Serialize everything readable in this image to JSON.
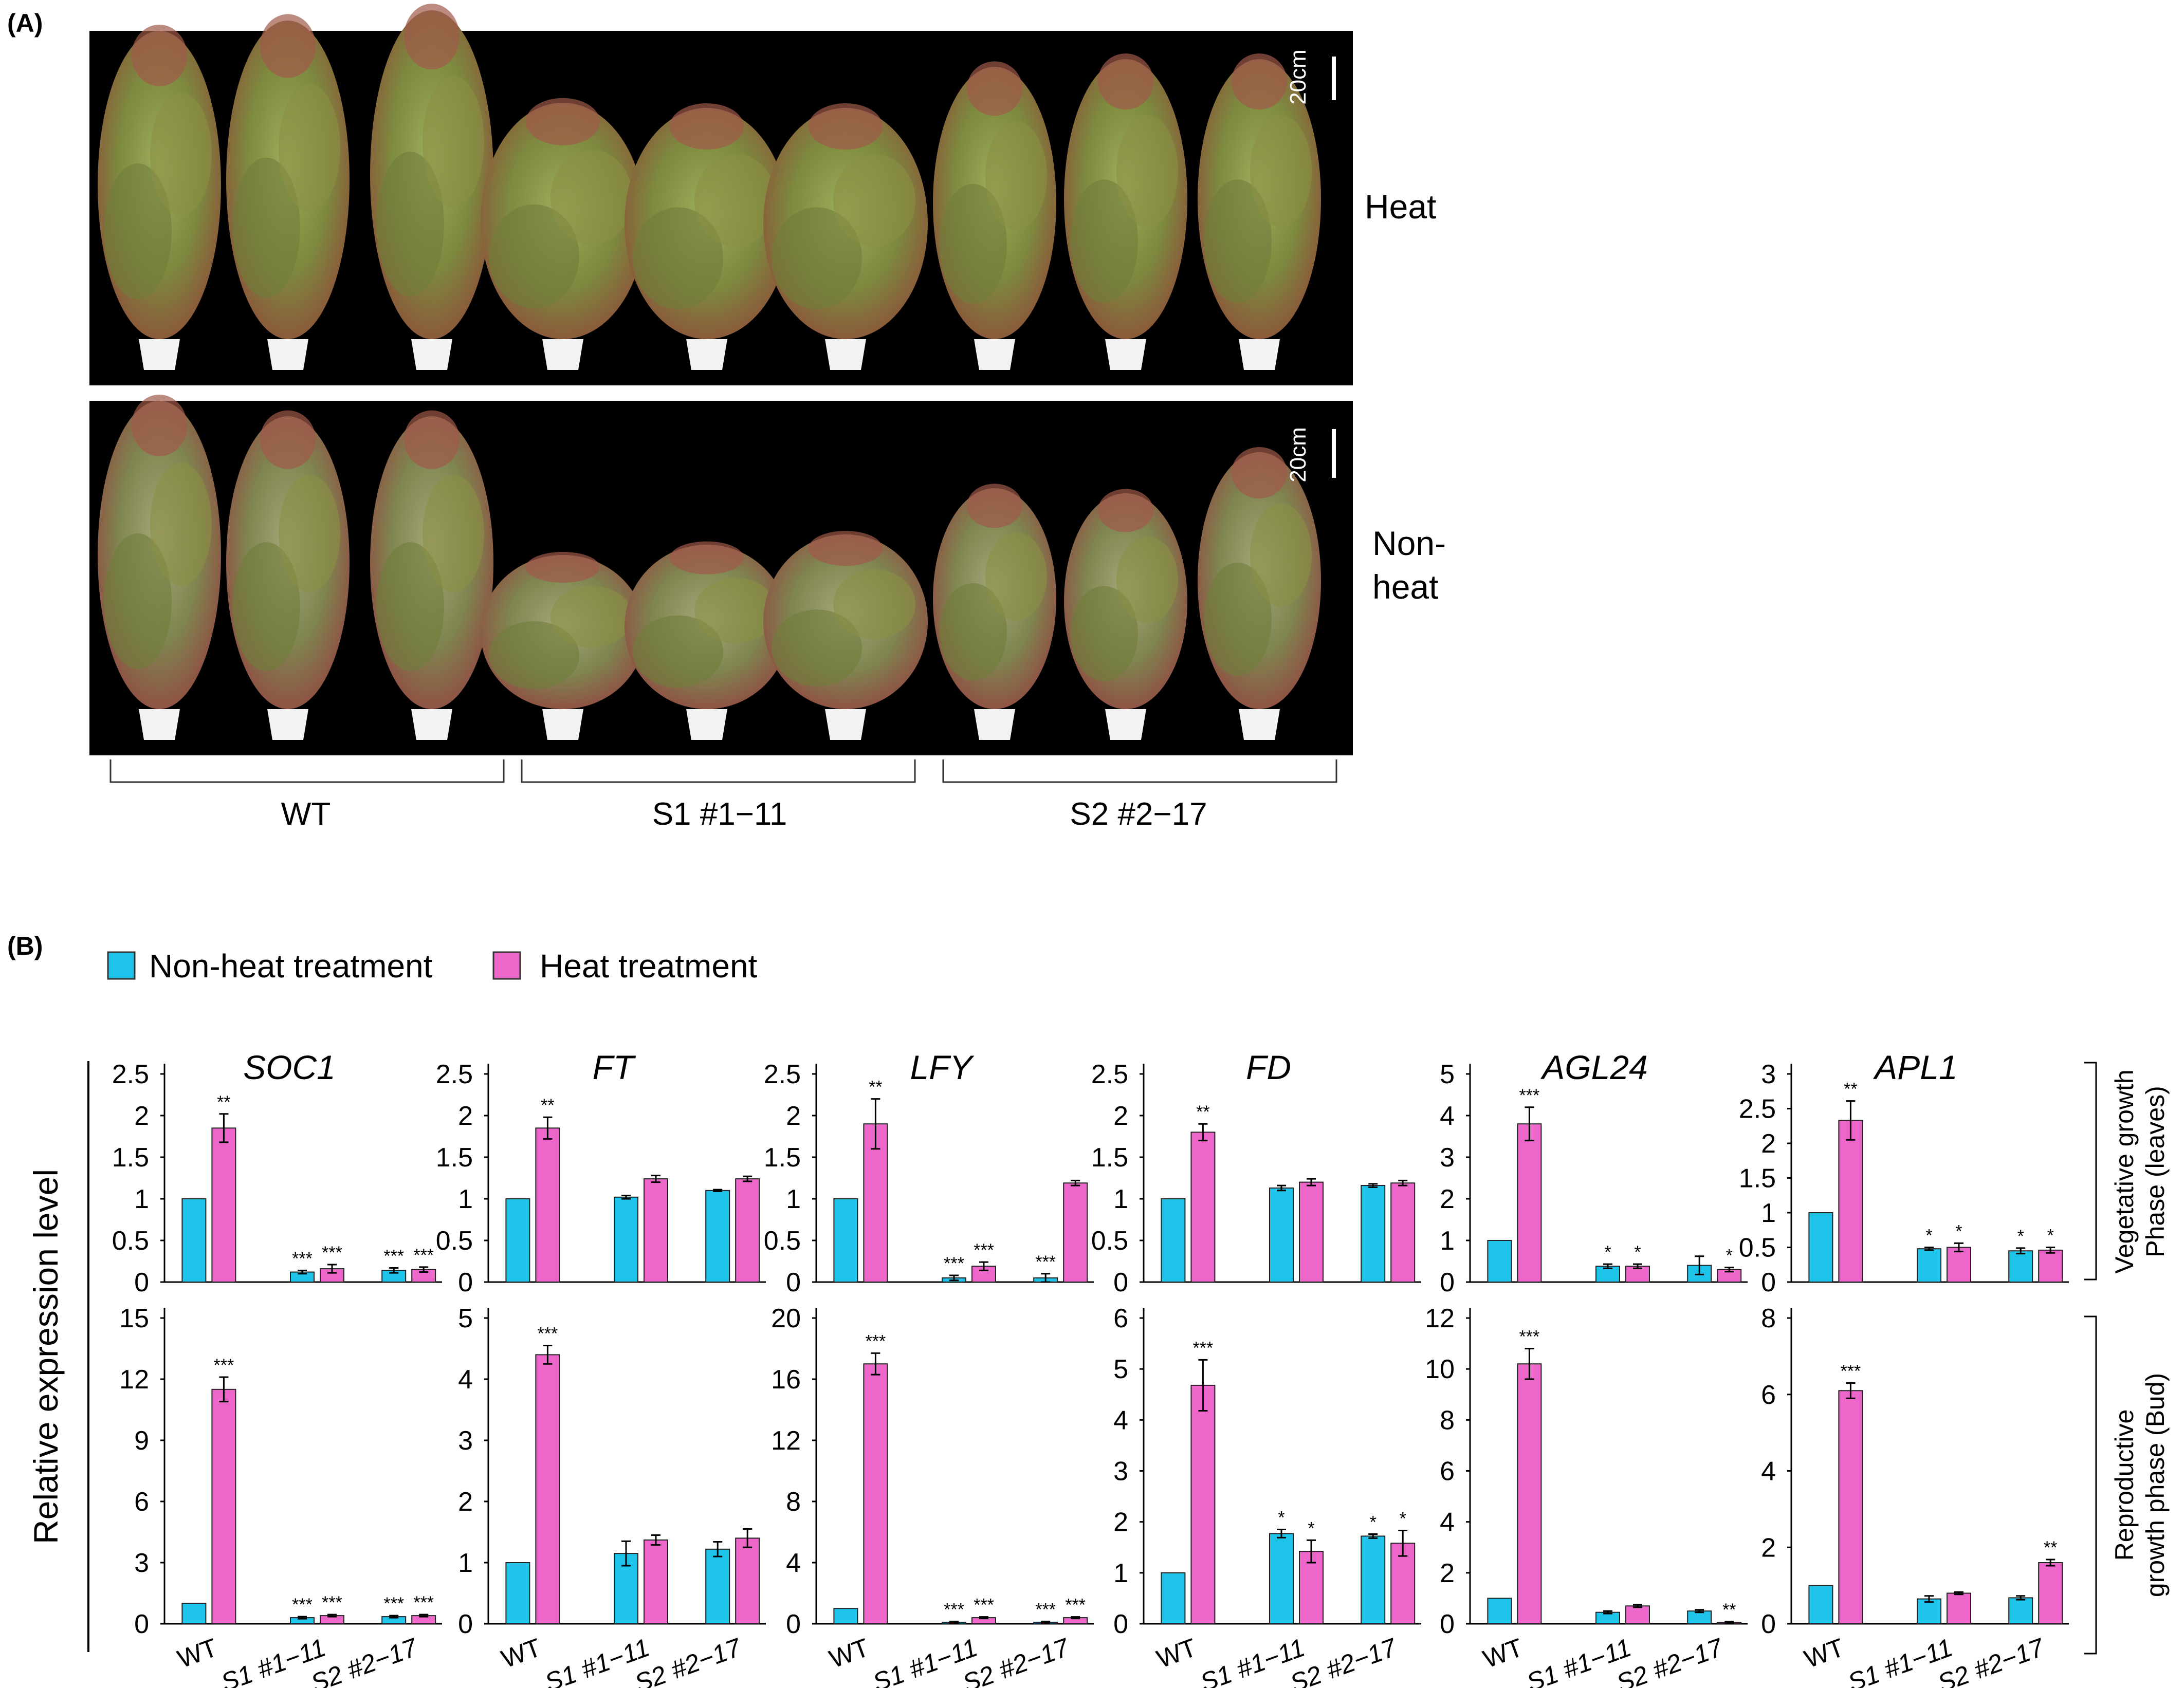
{
  "panel_a": {
    "label": "(A)",
    "scale_bar": "20cm",
    "condition_heat": "Heat",
    "condition_nonheat_line1": "Non-",
    "condition_nonheat_line2": "heat",
    "groups": [
      "WT",
      "S1 #1−11",
      "S2 #2−17"
    ]
  },
  "panel_b": {
    "label": "(B)",
    "legend": [
      {
        "name": "Non-heat treatment",
        "color": "#1ec4ea"
      },
      {
        "name": "Heat treatment",
        "color": "#ec67c9"
      }
    ],
    "y_axis_label": "Relative expression level",
    "row_labels": [
      {
        "line1": "Vegetative growth",
        "line2": "Phase (leaves)"
      },
      {
        "line1": "Reproductive",
        "line2": "growth phase  (Bud)"
      }
    ],
    "x_categories": [
      "WT",
      "S1 #1−11",
      "S2 #2−17"
    ]
  },
  "chart_data": [
    {
      "type": "bar",
      "row": "Vegetative",
      "title": "SOC1",
      "categories": [
        "WT",
        "S1 #1−11",
        "S2 #2−17"
      ],
      "ylim": [
        0,
        2.5
      ],
      "ticks": [
        "0",
        "0.5",
        "1",
        "1.5",
        "2",
        "2.5"
      ],
      "series": [
        {
          "name": "Non-heat treatment",
          "values": [
            1.0,
            0.12,
            0.14
          ],
          "errors": [
            0,
            0.02,
            0.03
          ],
          "sig": [
            "",
            "***",
            "***"
          ]
        },
        {
          "name": "Heat treatment",
          "values": [
            1.85,
            0.16,
            0.15
          ],
          "errors": [
            0.17,
            0.05,
            0.03
          ],
          "sig": [
            "**",
            "***",
            "***"
          ]
        }
      ]
    },
    {
      "type": "bar",
      "row": "Vegetative",
      "title": "FT",
      "categories": [
        "WT",
        "S1 #1−11",
        "S2 #2−17"
      ],
      "ylim": [
        0,
        2.5
      ],
      "ticks": [
        "0",
        "0.5",
        "1",
        "1.5",
        "2",
        "2.5"
      ],
      "series": [
        {
          "name": "Non-heat treatment",
          "values": [
            1.0,
            1.02,
            1.1
          ],
          "errors": [
            0,
            0.02,
            0.01
          ],
          "sig": [
            "",
            "",
            ""
          ]
        },
        {
          "name": "Heat treatment",
          "values": [
            1.85,
            1.24,
            1.24
          ],
          "errors": [
            0.13,
            0.04,
            0.03
          ],
          "sig": [
            "**",
            "",
            ""
          ]
        }
      ]
    },
    {
      "type": "bar",
      "row": "Vegetative",
      "title": "LFY",
      "categories": [
        "WT",
        "S1 #1−11",
        "S2 #2−17"
      ],
      "ylim": [
        0,
        2.5
      ],
      "ticks": [
        "0",
        "0.5",
        "1",
        "1.5",
        "2",
        "2.5"
      ],
      "series": [
        {
          "name": "Non-heat treatment",
          "values": [
            1.0,
            0.05,
            0.05
          ],
          "errors": [
            0,
            0.03,
            0.05
          ],
          "sig": [
            "",
            "***",
            "***"
          ]
        },
        {
          "name": "Heat treatment",
          "values": [
            1.9,
            0.19,
            1.19
          ],
          "errors": [
            0.3,
            0.05,
            0.03
          ],
          "sig": [
            "**",
            "***",
            ""
          ]
        }
      ]
    },
    {
      "type": "bar",
      "row": "Vegetative",
      "title": "FD",
      "categories": [
        "WT",
        "S1 #1−11",
        "S2 #2−17"
      ],
      "ylim": [
        0,
        2.5
      ],
      "ticks": [
        "0",
        "0.5",
        "1",
        "1.5",
        "2",
        "2.5"
      ],
      "series": [
        {
          "name": "Non-heat treatment",
          "values": [
            1.0,
            1.13,
            1.16
          ],
          "errors": [
            0,
            0.03,
            0.02
          ],
          "sig": [
            "",
            "",
            ""
          ]
        },
        {
          "name": "Heat treatment",
          "values": [
            1.8,
            1.2,
            1.19
          ],
          "errors": [
            0.1,
            0.04,
            0.03
          ],
          "sig": [
            "**",
            "",
            ""
          ]
        }
      ]
    },
    {
      "type": "bar",
      "row": "Vegetative",
      "title": "AGL24",
      "categories": [
        "WT",
        "S1 #1−11",
        "S2 #2−17"
      ],
      "ylim": [
        0,
        5
      ],
      "ticks": [
        "0",
        "1",
        "2",
        "3",
        "4",
        "5"
      ],
      "series": [
        {
          "name": "Non-heat treatment",
          "values": [
            1.0,
            0.38,
            0.4
          ],
          "errors": [
            0,
            0.05,
            0.22
          ],
          "sig": [
            "",
            "*",
            ""
          ]
        },
        {
          "name": "Heat treatment",
          "values": [
            3.8,
            0.38,
            0.3
          ],
          "errors": [
            0.4,
            0.05,
            0.05
          ],
          "sig": [
            "***",
            "*",
            "*"
          ]
        }
      ]
    },
    {
      "type": "bar",
      "row": "Vegetative",
      "title": "APL1",
      "categories": [
        "WT",
        "S1 #1−11",
        "S2 #2−17"
      ],
      "ylim": [
        0,
        3
      ],
      "ticks": [
        "0",
        "0.5",
        "1",
        "1.5",
        "2",
        "2.5",
        "3"
      ],
      "series": [
        {
          "name": "Non-heat treatment",
          "values": [
            1.0,
            0.48,
            0.45
          ],
          "errors": [
            0,
            0.02,
            0.04
          ],
          "sig": [
            "",
            "*",
            "*"
          ]
        },
        {
          "name": "Heat treatment",
          "values": [
            2.33,
            0.5,
            0.46
          ],
          "errors": [
            0.28,
            0.06,
            0.04
          ],
          "sig": [
            "**",
            "*",
            "*"
          ]
        }
      ]
    },
    {
      "type": "bar",
      "row": "Reproductive",
      "title": "SOC1",
      "categories": [
        "WT",
        "S1 #1−11",
        "S2 #2−17"
      ],
      "ylim": [
        0,
        15
      ],
      "ticks": [
        "0",
        "3",
        "6",
        "9",
        "12",
        "15"
      ],
      "series": [
        {
          "name": "Non-heat treatment",
          "values": [
            1.0,
            0.3,
            0.35
          ],
          "errors": [
            0,
            0.05,
            0.05
          ],
          "sig": [
            "",
            "***",
            "***"
          ]
        },
        {
          "name": "Heat treatment",
          "values": [
            11.5,
            0.4,
            0.4
          ],
          "errors": [
            0.6,
            0.05,
            0.05
          ],
          "sig": [
            "***",
            "***",
            "***"
          ]
        }
      ]
    },
    {
      "type": "bar",
      "row": "Reproductive",
      "title": "FT",
      "categories": [
        "WT",
        "S1 #1−11",
        "S2 #2−17"
      ],
      "ylim": [
        0,
        5
      ],
      "ticks": [
        "0",
        "1",
        "2",
        "3",
        "4",
        "5"
      ],
      "series": [
        {
          "name": "Non-heat treatment",
          "values": [
            1.0,
            1.15,
            1.22
          ],
          "errors": [
            0,
            0.2,
            0.12
          ],
          "sig": [
            "",
            "",
            ""
          ]
        },
        {
          "name": "Heat treatment",
          "values": [
            4.4,
            1.37,
            1.4
          ],
          "errors": [
            0.15,
            0.08,
            0.15
          ],
          "sig": [
            "***",
            "",
            ""
          ]
        }
      ]
    },
    {
      "type": "bar",
      "row": "Reproductive",
      "title": "LFY",
      "categories": [
        "WT",
        "S1 #1−11",
        "S2 #2−17"
      ],
      "ylim": [
        0,
        20
      ],
      "ticks": [
        "0",
        "4",
        "8",
        "12",
        "16",
        "20"
      ],
      "series": [
        {
          "name": "Non-heat treatment",
          "values": [
            1.0,
            0.1,
            0.1
          ],
          "errors": [
            0,
            0.05,
            0.05
          ],
          "sig": [
            "",
            "***",
            "***"
          ]
        },
        {
          "name": "Heat treatment",
          "values": [
            17.0,
            0.4,
            0.4
          ],
          "errors": [
            0.7,
            0.05,
            0.05
          ],
          "sig": [
            "***",
            "***",
            "***"
          ]
        }
      ]
    },
    {
      "type": "bar",
      "row": "Reproductive",
      "title": "FD",
      "categories": [
        "WT",
        "S1 #1−11",
        "S2 #2−17"
      ],
      "ylim": [
        0,
        6
      ],
      "ticks": [
        "0",
        "1",
        "2",
        "3",
        "4",
        "5",
        "6"
      ],
      "series": [
        {
          "name": "Non-heat treatment",
          "values": [
            1.0,
            1.77,
            1.72
          ],
          "errors": [
            0,
            0.08,
            0.04
          ],
          "sig": [
            "",
            "*",
            "*"
          ]
        },
        {
          "name": "Heat treatment",
          "values": [
            4.68,
            1.42,
            1.58
          ],
          "errors": [
            0.5,
            0.22,
            0.25
          ],
          "sig": [
            "***",
            "*",
            "*"
          ]
        }
      ]
    },
    {
      "type": "bar",
      "row": "Reproductive",
      "title": "AGL24",
      "categories": [
        "WT",
        "S1 #1−11",
        "S2 #2−17"
      ],
      "ylim": [
        0,
        12
      ],
      "ticks": [
        "0",
        "2",
        "4",
        "6",
        "8",
        "10",
        "12"
      ],
      "series": [
        {
          "name": "Non-heat treatment",
          "values": [
            1.0,
            0.45,
            0.5
          ],
          "errors": [
            0,
            0.05,
            0.05
          ],
          "sig": [
            "",
            "",
            ""
          ]
        },
        {
          "name": "Heat treatment",
          "values": [
            10.2,
            0.7,
            0.05
          ],
          "errors": [
            0.6,
            0.05,
            0.03
          ],
          "sig": [
            "***",
            "",
            "**"
          ]
        }
      ]
    },
    {
      "type": "bar",
      "row": "Reproductive",
      "title": "APL1",
      "categories": [
        "WT",
        "S1 #1−11",
        "S2 #2−17"
      ],
      "ylim": [
        0,
        8
      ],
      "ticks": [
        "0",
        "2",
        "4",
        "6",
        "8"
      ],
      "series": [
        {
          "name": "Non-heat treatment",
          "values": [
            1.0,
            0.65,
            0.68
          ],
          "errors": [
            0,
            0.08,
            0.05
          ],
          "sig": [
            "",
            "",
            ""
          ]
        },
        {
          "name": "Heat treatment",
          "values": [
            6.1,
            0.8,
            1.6
          ],
          "errors": [
            0.2,
            0.03,
            0.08
          ],
          "sig": [
            "***",
            "",
            "**"
          ]
        }
      ]
    }
  ]
}
